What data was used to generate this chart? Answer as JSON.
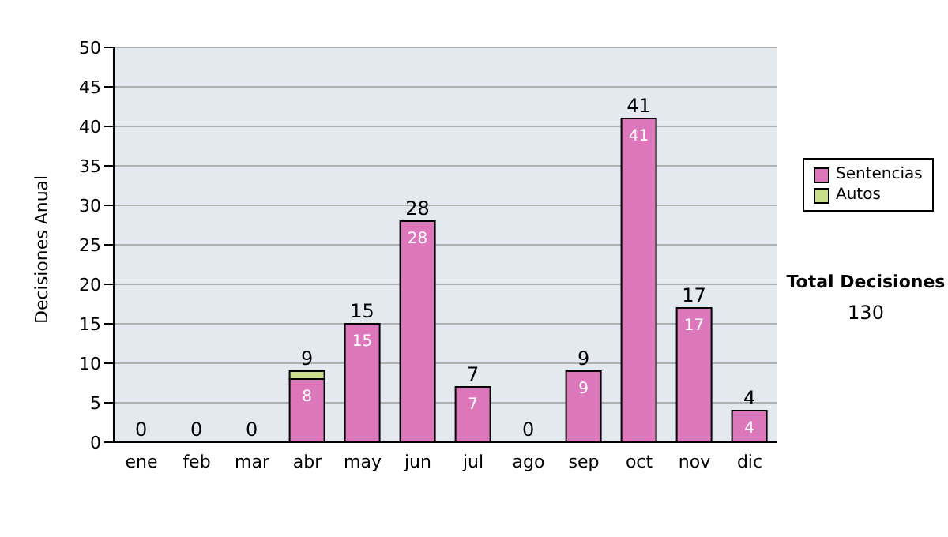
{
  "chart_data": {
    "type": "bar",
    "ylabel": "Decisiones Anual",
    "categories": [
      "ene",
      "feb",
      "mar",
      "abr",
      "may",
      "jun",
      "jul",
      "ago",
      "sep",
      "oct",
      "nov",
      "dic"
    ],
    "series": [
      {
        "name": "Sentencias",
        "color": "#dd77bb",
        "values": [
          0,
          0,
          0,
          8,
          15,
          28,
          7,
          0,
          9,
          41,
          17,
          4
        ],
        "value_labels": [
          null,
          null,
          null,
          "8",
          "15",
          "28",
          "7",
          null,
          "9",
          "41",
          "17",
          "4"
        ]
      },
      {
        "name": "Autos",
        "color": "#ccdd88",
        "values": [
          0,
          0,
          0,
          1,
          0,
          0,
          0,
          0,
          0,
          0,
          0,
          0
        ]
      }
    ],
    "stacked": true,
    "totals": [
      "0",
      "0",
      "0",
      "9",
      "15",
      "28",
      "7",
      "0",
      "9",
      "41",
      "17",
      "4"
    ],
    "ylim": [
      0,
      50
    ],
    "yticks": [
      0,
      5,
      10,
      15,
      20,
      25,
      30,
      35,
      40,
      45,
      50
    ],
    "grid": "y",
    "legend": "right",
    "annotations": [
      "Total Decisiones",
      "130"
    ]
  }
}
